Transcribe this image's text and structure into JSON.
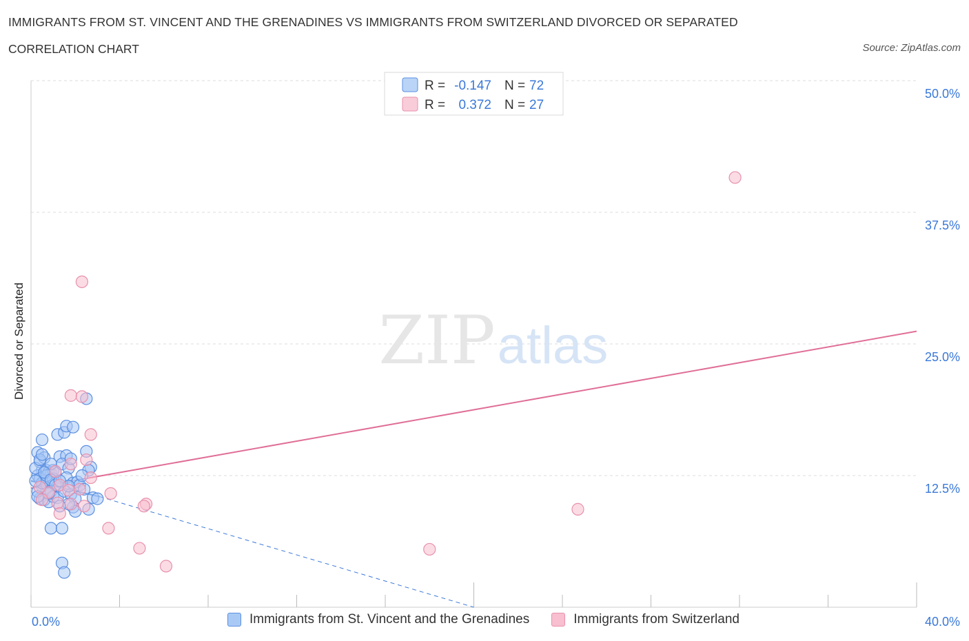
{
  "title": "IMMIGRANTS FROM ST. VINCENT AND THE GRENADINES VS IMMIGRANTS FROM SWITZERLAND DIVORCED OR SEPARATED",
  "subtitle": "CORRELATION CHART",
  "source": "Source: ZipAtlas.com",
  "colors": {
    "blue_fill": "#a9c9f5",
    "blue_stroke": "#5b8fe0",
    "blue_line": "#3a78d8",
    "pink_fill": "#f7bfd0",
    "pink_stroke": "#e890ac",
    "pink_line": "#e06e97",
    "axis_text": "#3a78d8",
    "grid": "#dddddd"
  },
  "stats": {
    "r_label": "R =",
    "n_label": "N =",
    "series1": {
      "r": "-0.147",
      "n": "72"
    },
    "series2": {
      "r": "0.372",
      "n": "27"
    }
  },
  "chart_data": {
    "type": "scatter",
    "xlabel": "",
    "ylabel": "Divorced or Separated",
    "xlim": [
      0,
      40
    ],
    "ylim": [
      0,
      50
    ],
    "x_tick_labels": [
      "0.0%",
      "40.0%"
    ],
    "y_ticks": [
      12.5,
      25.0,
      37.5,
      50.0
    ],
    "y_tick_labels": [
      "12.5%",
      "25.0%",
      "37.5%",
      "50.0%"
    ],
    "grid": true,
    "legend_position": "top-center",
    "series": [
      {
        "name": "Immigrants from St. Vincent and the Grenadines",
        "color": "blue",
        "points": [
          [
            0.3,
            14.7
          ],
          [
            0.5,
            13.0
          ],
          [
            0.4,
            13.8
          ],
          [
            0.6,
            14.2
          ],
          [
            0.7,
            13.0
          ],
          [
            0.8,
            12.8
          ],
          [
            0.9,
            12.7
          ],
          [
            1.0,
            13.0
          ],
          [
            0.3,
            12.5
          ],
          [
            0.4,
            12.2
          ],
          [
            0.6,
            12.0
          ],
          [
            0.8,
            11.8
          ],
          [
            1.0,
            12.2
          ],
          [
            0.5,
            11.5
          ],
          [
            0.7,
            11.3
          ],
          [
            0.9,
            11.0
          ],
          [
            1.2,
            11.5
          ],
          [
            0.4,
            10.3
          ],
          [
            0.6,
            10.2
          ],
          [
            0.8,
            10.0
          ],
          [
            1.0,
            10.5
          ],
          [
            1.2,
            10.4
          ],
          [
            0.3,
            11.0
          ],
          [
            0.5,
            11.8
          ],
          [
            0.7,
            12.5
          ],
          [
            1.1,
            12.8
          ],
          [
            0.9,
            13.6
          ],
          [
            1.3,
            14.3
          ],
          [
            1.6,
            14.4
          ],
          [
            1.4,
            13.6
          ],
          [
            1.7,
            13.2
          ],
          [
            1.8,
            14.1
          ],
          [
            1.6,
            12.3
          ],
          [
            1.9,
            11.8
          ],
          [
            2.1,
            11.9
          ],
          [
            2.2,
            11.6
          ],
          [
            2.4,
            11.2
          ],
          [
            1.5,
            11.0
          ],
          [
            1.8,
            10.7
          ],
          [
            2.0,
            10.3
          ],
          [
            2.5,
            14.8
          ],
          [
            2.7,
            13.3
          ],
          [
            1.2,
            16.4
          ],
          [
            0.5,
            15.9
          ],
          [
            1.5,
            16.6
          ],
          [
            1.6,
            17.2
          ],
          [
            1.9,
            17.1
          ],
          [
            2.5,
            19.8
          ],
          [
            2.6,
            13.0
          ],
          [
            2.3,
            12.5
          ],
          [
            2.8,
            10.4
          ],
          [
            3.0,
            10.3
          ],
          [
            2.6,
            9.3
          ],
          [
            1.9,
            9.5
          ],
          [
            2.0,
            9.1
          ],
          [
            1.7,
            9.8
          ],
          [
            1.3,
            9.6
          ],
          [
            0.9,
            7.5
          ],
          [
            1.4,
            7.5
          ],
          [
            1.4,
            4.2
          ],
          [
            1.5,
            3.3
          ],
          [
            0.2,
            13.2
          ],
          [
            0.2,
            12.0
          ],
          [
            0.3,
            10.5
          ],
          [
            0.4,
            14.0
          ],
          [
            0.5,
            14.5
          ],
          [
            0.6,
            12.8
          ],
          [
            0.9,
            12.1
          ],
          [
            1.1,
            11.6
          ],
          [
            1.3,
            12.0
          ],
          [
            0.8,
            10.8
          ],
          [
            1.7,
            11.5
          ]
        ]
      },
      {
        "name": "Immigrants from Switzerland",
        "color": "pink",
        "points": [
          [
            31.8,
            40.8
          ],
          [
            2.3,
            30.9
          ],
          [
            1.8,
            20.1
          ],
          [
            2.3,
            20.0
          ],
          [
            2.7,
            16.4
          ],
          [
            2.5,
            14.0
          ],
          [
            1.8,
            13.6
          ],
          [
            2.7,
            12.3
          ],
          [
            1.3,
            11.6
          ],
          [
            2.2,
            11.2
          ],
          [
            1.7,
            11.1
          ],
          [
            3.6,
            10.8
          ],
          [
            0.8,
            10.9
          ],
          [
            0.5,
            10.2
          ],
          [
            1.2,
            9.9
          ],
          [
            1.8,
            9.8
          ],
          [
            2.4,
            9.6
          ],
          [
            1.3,
            8.9
          ],
          [
            5.2,
            9.8
          ],
          [
            5.1,
            9.6
          ],
          [
            3.5,
            7.5
          ],
          [
            24.7,
            9.3
          ],
          [
            4.9,
            5.6
          ],
          [
            18.0,
            5.5
          ],
          [
            6.1,
            3.9
          ],
          [
            0.4,
            11.4
          ],
          [
            1.1,
            12.9
          ]
        ]
      }
    ],
    "trend_lines": [
      {
        "series": "Immigrants from St. Vincent and the Grenadines",
        "solid": [
          [
            0.0,
            12.0
          ],
          [
            3.1,
            10.5
          ]
        ],
        "dashed": [
          [
            3.1,
            10.5
          ],
          [
            20.0,
            0.0
          ]
        ]
      },
      {
        "series": "Immigrants from Switzerland",
        "solid": [
          [
            0.0,
            11.3
          ],
          [
            40.0,
            26.2
          ]
        ]
      }
    ]
  }
}
